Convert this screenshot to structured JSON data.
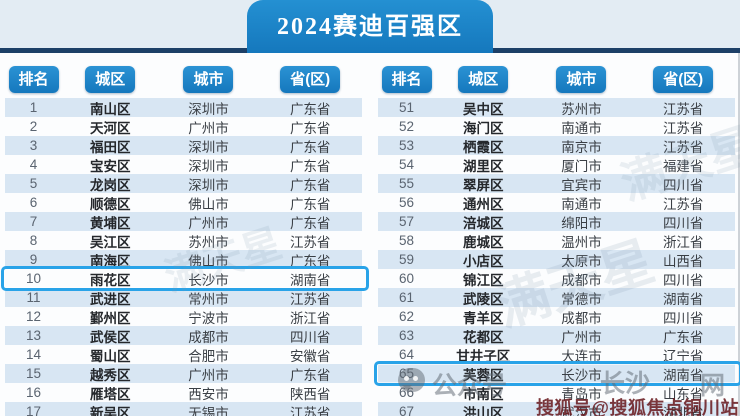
{
  "title": "2024赛迪百强区",
  "columns": [
    "排名",
    "城区",
    "城市",
    "省(区)"
  ],
  "tables": [
    {
      "rows": [
        {
          "rank": "1",
          "district": "南山区",
          "city": "深圳市",
          "province": "广东省"
        },
        {
          "rank": "2",
          "district": "天河区",
          "city": "广州市",
          "province": "广东省"
        },
        {
          "rank": "3",
          "district": "福田区",
          "city": "深圳市",
          "province": "广东省"
        },
        {
          "rank": "4",
          "district": "宝安区",
          "city": "深圳市",
          "province": "广东省"
        },
        {
          "rank": "5",
          "district": "龙岗区",
          "city": "深圳市",
          "province": "广东省"
        },
        {
          "rank": "6",
          "district": "顺德区",
          "city": "佛山市",
          "province": "广东省"
        },
        {
          "rank": "7",
          "district": "黄埔区",
          "city": "广州市",
          "province": "广东省"
        },
        {
          "rank": "8",
          "district": "吴江区",
          "city": "苏州市",
          "province": "江苏省"
        },
        {
          "rank": "9",
          "district": "南海区",
          "city": "佛山市",
          "province": "广东省"
        },
        {
          "rank": "10",
          "district": "雨花区",
          "city": "长沙市",
          "province": "湖南省",
          "highlighted": true
        },
        {
          "rank": "11",
          "district": "武进区",
          "city": "常州市",
          "province": "江苏省"
        },
        {
          "rank": "12",
          "district": "鄞州区",
          "city": "宁波市",
          "province": "浙江省"
        },
        {
          "rank": "13",
          "district": "武侯区",
          "city": "成都市",
          "province": "四川省"
        },
        {
          "rank": "14",
          "district": "蜀山区",
          "city": "合肥市",
          "province": "安徽省"
        },
        {
          "rank": "15",
          "district": "越秀区",
          "city": "广州市",
          "province": "广东省"
        },
        {
          "rank": "16",
          "district": "雁塔区",
          "city": "西安市",
          "province": "陕西省"
        },
        {
          "rank": "17",
          "district": "新吴区",
          "city": "无锡市",
          "province": "江苏省"
        }
      ]
    },
    {
      "rows": [
        {
          "rank": "51",
          "district": "吴中区",
          "city": "苏州市",
          "province": "江苏省"
        },
        {
          "rank": "52",
          "district": "海门区",
          "city": "南通市",
          "province": "江苏省"
        },
        {
          "rank": "53",
          "district": "栖霞区",
          "city": "南京市",
          "province": "江苏省"
        },
        {
          "rank": "54",
          "district": "湖里区",
          "city": "厦门市",
          "province": "福建省"
        },
        {
          "rank": "55",
          "district": "翠屏区",
          "city": "宜宾市",
          "province": "四川省"
        },
        {
          "rank": "56",
          "district": "通州区",
          "city": "南通市",
          "province": "江苏省"
        },
        {
          "rank": "57",
          "district": "涪城区",
          "city": "绵阳市",
          "province": "四川省"
        },
        {
          "rank": "58",
          "district": "鹿城区",
          "city": "温州市",
          "province": "浙江省"
        },
        {
          "rank": "59",
          "district": "小店区",
          "city": "太原市",
          "province": "山西省"
        },
        {
          "rank": "60",
          "district": "锦江区",
          "city": "成都市",
          "province": "四川省"
        },
        {
          "rank": "61",
          "district": "武陵区",
          "city": "常德市",
          "province": "湖南省"
        },
        {
          "rank": "62",
          "district": "青羊区",
          "city": "成都市",
          "province": "四川省"
        },
        {
          "rank": "63",
          "district": "花都区",
          "city": "广州市",
          "province": "广东省"
        },
        {
          "rank": "64",
          "district": "甘井子区",
          "city": "大连市",
          "province": "辽宁省"
        },
        {
          "rank": "65",
          "district": "芙蓉区",
          "city": "长沙市",
          "province": "湖南省",
          "highlighted": true
        },
        {
          "rank": "66",
          "district": "市南区",
          "city": "青岛市",
          "province": "山东省"
        },
        {
          "rank": "67",
          "district": "洪山区",
          "city": "武汉市",
          "province": "湖北省"
        }
      ]
    }
  ],
  "watermarks": {
    "diagonal": "满天星",
    "wechat_label": "公众号",
    "city_label": "长沙",
    "net_label": "网",
    "sohu_label": "搜狐号@搜狐焦点铜川站"
  },
  "colors": {
    "header_blue": "#1b84c7",
    "chip_blue": "#1a82c6",
    "navy_line": "#1d4067",
    "stripe_blue": "#d8e6f3",
    "highlight_border": "#29a3e8",
    "sohu_red": "#6b1d22"
  }
}
